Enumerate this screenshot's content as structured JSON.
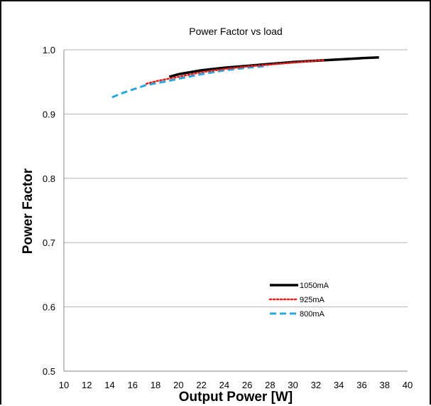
{
  "chart_data": {
    "type": "line",
    "title": "Power Factor vs load",
    "xlabel": "Output Power [W]",
    "ylabel": "Power Factor",
    "xlim": [
      10,
      40
    ],
    "ylim": [
      0.5,
      1.0
    ],
    "xticks": [
      10,
      12,
      14,
      16,
      18,
      20,
      22,
      24,
      26,
      28,
      30,
      32,
      34,
      36,
      38,
      40
    ],
    "yticks": [
      "0.5",
      "0.6",
      "0.7",
      "0.8",
      "0.9",
      "1.0"
    ],
    "grid": "horizontal",
    "legend_position": "bottom-right",
    "series": [
      {
        "name": "1050mA",
        "color": "#000000",
        "style": "solid",
        "x": [
          19.2,
          20,
          22,
          24,
          26,
          28,
          30,
          32,
          34,
          36,
          37.5
        ],
        "y": [
          0.958,
          0.962,
          0.968,
          0.972,
          0.975,
          0.978,
          0.981,
          0.983,
          0.985,
          0.987,
          0.988
        ]
      },
      {
        "name": "925mA",
        "color": "#e8211d",
        "style": "dotted",
        "x": [
          17.2,
          18,
          20,
          22,
          24,
          26,
          28,
          30,
          32,
          32.8
        ],
        "y": [
          0.947,
          0.951,
          0.958,
          0.965,
          0.97,
          0.974,
          0.977,
          0.98,
          0.983,
          0.984
        ]
      },
      {
        "name": "800mA",
        "color": "#29a8e0",
        "style": "dashed",
        "x": [
          14.2,
          15,
          16,
          17,
          18,
          19,
          20,
          22,
          24,
          26,
          27.8
        ],
        "y": [
          0.926,
          0.932,
          0.938,
          0.944,
          0.948,
          0.951,
          0.955,
          0.962,
          0.968,
          0.972,
          0.975
        ]
      }
    ]
  }
}
